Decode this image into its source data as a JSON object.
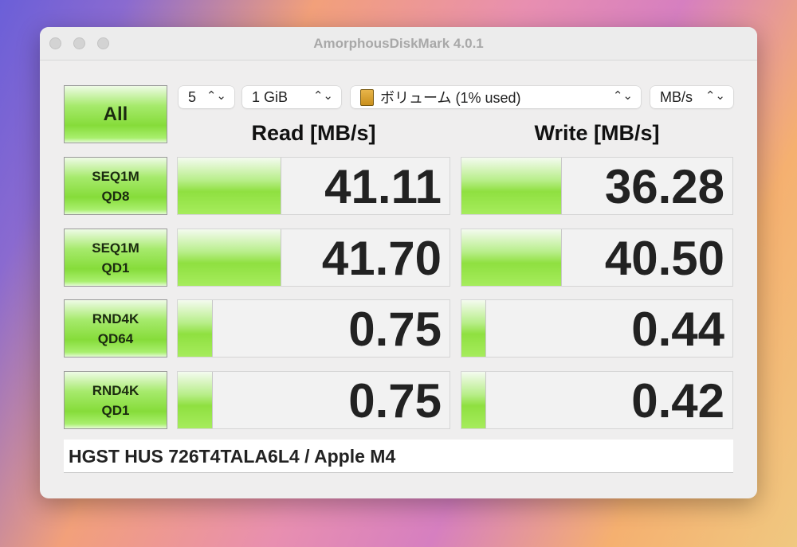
{
  "window": {
    "title": "AmorphousDiskMark 4.0.1"
  },
  "controls": {
    "all_label": "All",
    "count": "5",
    "size": "1 GiB",
    "volume": "ボリューム (1% used)",
    "unit": "MB/s"
  },
  "headers": {
    "read": "Read [MB/s]",
    "write": "Write [MB/s]"
  },
  "rows": [
    {
      "label1": "SEQ1M",
      "label2": "QD8",
      "read": "41.11",
      "write": "36.28",
      "read_fill": 0.38,
      "write_fill": 0.37
    },
    {
      "label1": "SEQ1M",
      "label2": "QD1",
      "read": "41.70",
      "write": "40.50",
      "read_fill": 0.38,
      "write_fill": 0.37
    },
    {
      "label1": "RND4K",
      "label2": "QD64",
      "read": "0.75",
      "write": "0.44",
      "read_fill": 0.13,
      "write_fill": 0.09
    },
    {
      "label1": "RND4K",
      "label2": "QD1",
      "read": "0.75",
      "write": "0.42",
      "read_fill": 0.13,
      "write_fill": 0.09
    }
  ],
  "footer": {
    "comment": "HGST HUS 726T4TALA6L4 / Apple M4"
  },
  "icons": {
    "window_controls": "traffic-lights",
    "volume": "disk-icon",
    "select": "chevron-up-down-icon"
  }
}
